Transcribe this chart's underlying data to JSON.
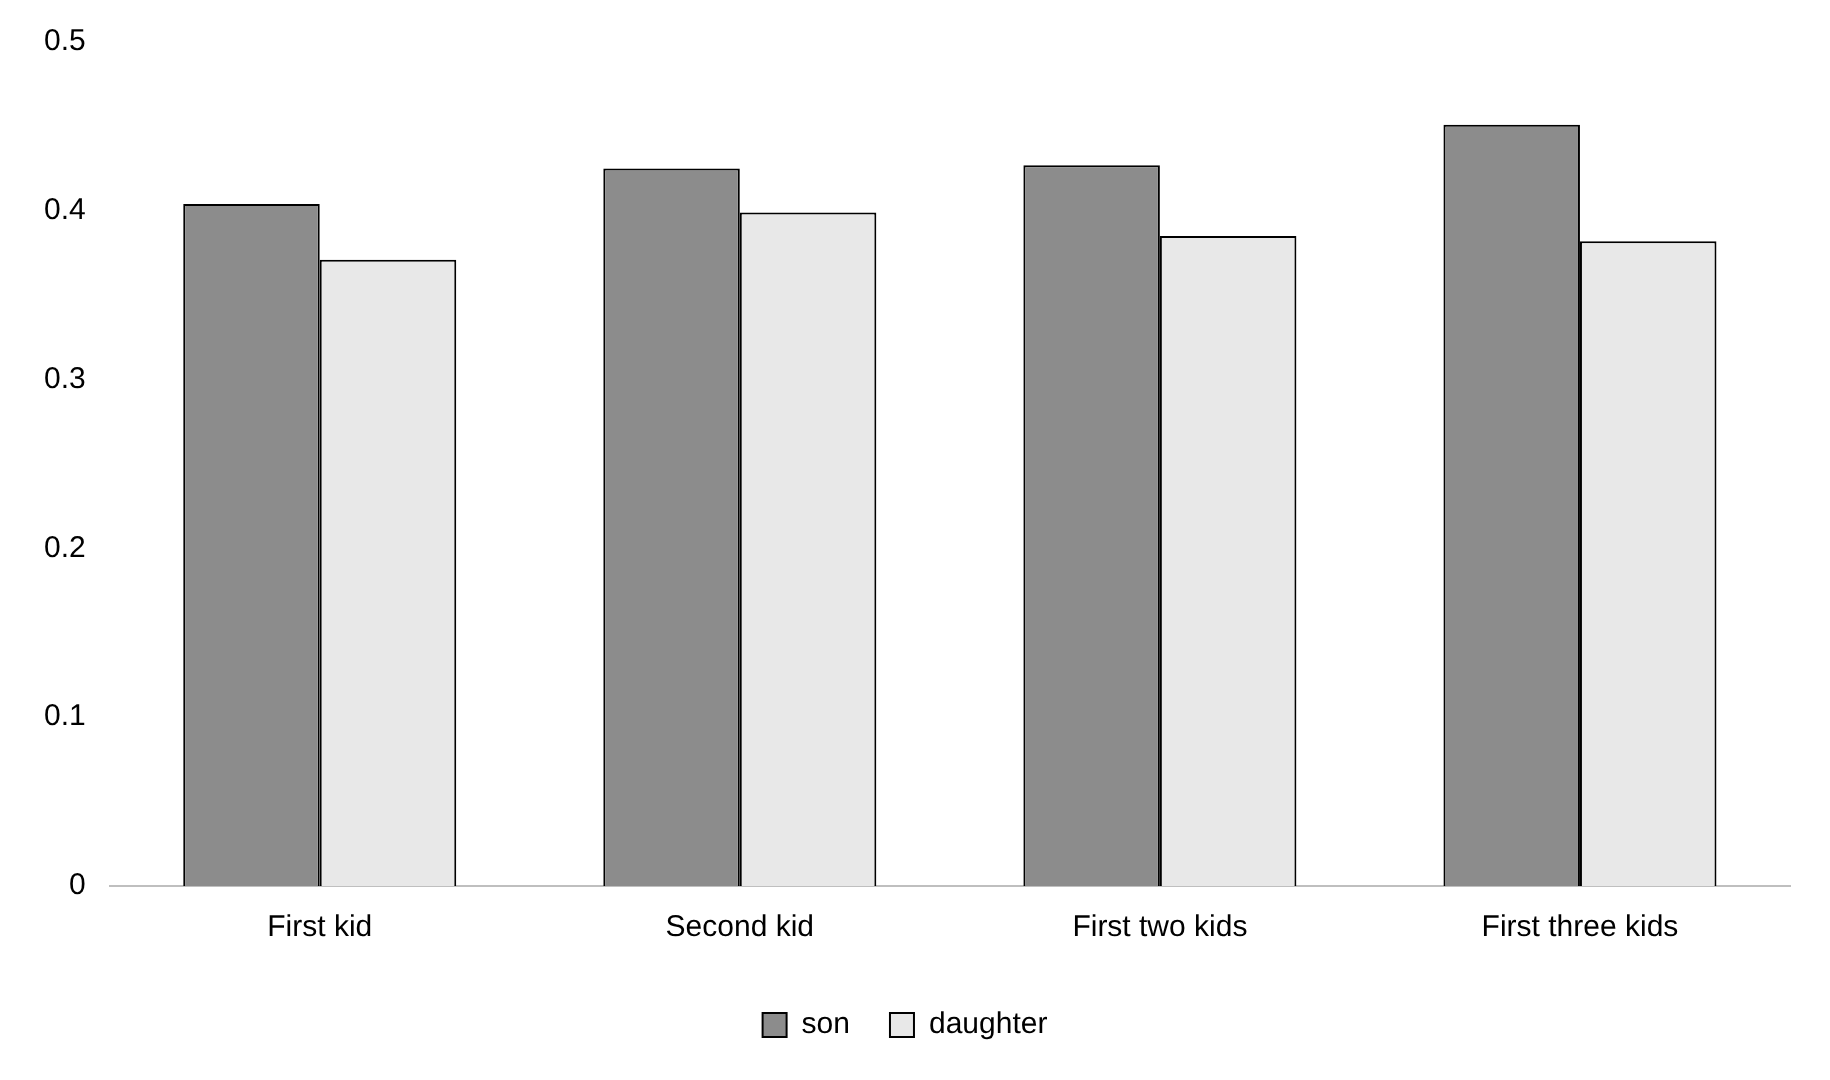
{
  "chart_data": {
    "type": "bar",
    "categories": [
      "First kid",
      "Second kid",
      "First two kids",
      "First three kids"
    ],
    "series": [
      {
        "name": "son",
        "color": "#8c8c8c",
        "values": [
          0.404,
          0.425,
          0.427,
          0.451
        ]
      },
      {
        "name": "daughter",
        "color": "#e8e8e8",
        "values": [
          0.371,
          0.399,
          0.385,
          0.382
        ]
      }
    ],
    "ylim": [
      0,
      0.5
    ],
    "yticks": [
      0,
      0.1,
      0.2,
      0.3,
      0.4,
      0.5
    ],
    "grid": false,
    "legend": "bottom"
  }
}
